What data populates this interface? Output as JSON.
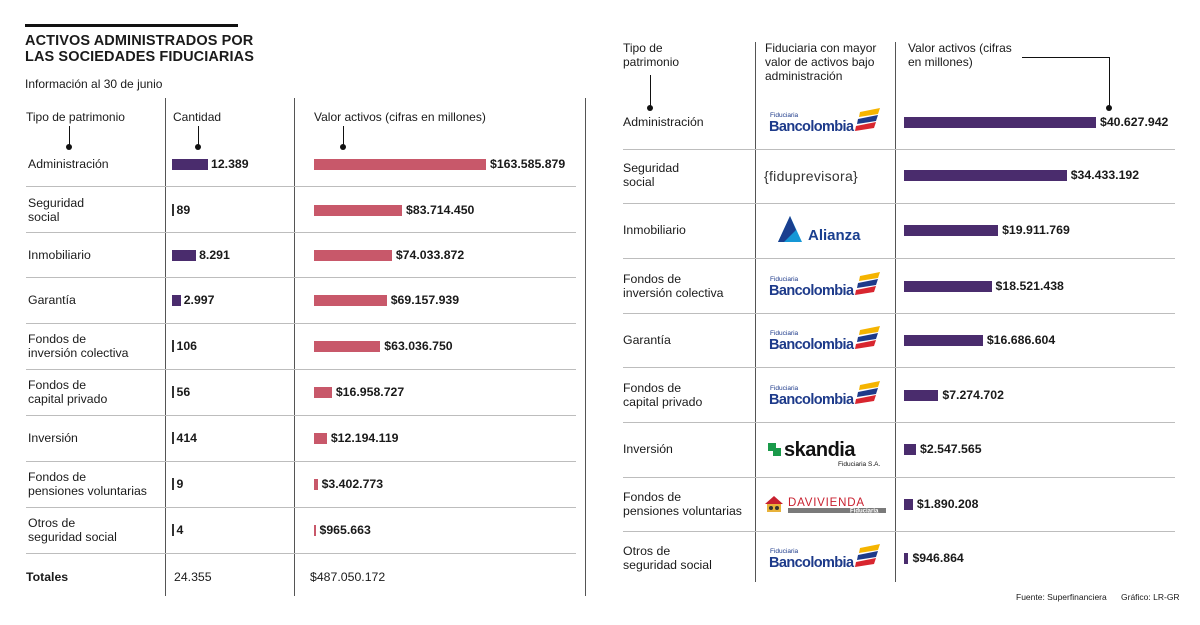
{
  "title": "ACTIVOS ADMINISTRADOS POR LAS SOCIEDADES FIDUCIARIAS",
  "subtitle": "Información al 30 de junio",
  "colors": {
    "purple": "#4a2c6d",
    "red": "#c8586a"
  },
  "left": {
    "headers": {
      "type": "Tipo de patrimonio",
      "count": "Cantidad",
      "value": "Valor activos (cifras en millones)"
    },
    "totals": {
      "label": "Totales",
      "count": "24.355",
      "value": "$487.050.172"
    }
  },
  "right": {
    "headers": {
      "type": "Tipo de patrimonio",
      "fiduciaria": "Fiduciaria con mayor valor de activos bajo administración",
      "value": "Valor activos (cifras en millones)"
    }
  },
  "logos": {
    "bancolombia_small": "Fiduciaria",
    "bancolombia": "Bancolombia",
    "fiduprevisora": "{fiduprevisora}",
    "alianza": "Alianza",
    "skandia": "skandia",
    "skandia_sub": "Fiduciaria S.A.",
    "davivienda": "DAVIVIENDA",
    "davivienda_sub": "Fiduciaria"
  },
  "chart_data": [
    {
      "type": "bar",
      "title": "ACTIVOS ADMINISTRADOS POR LAS SOCIEDADES FIDUCIARIAS",
      "subtitle": "Información al 30 de junio",
      "categories": [
        "Administración",
        "Seguridad social",
        "Inmobiliario",
        "Garantía",
        "Fondos de inversión colectiva",
        "Fondos de capital privado",
        "Inversión",
        "Fondos de pensiones voluntarias",
        "Otros de seguridad social"
      ],
      "series": [
        {
          "name": "Cantidad",
          "values": [
            12389,
            89,
            8291,
            2997,
            106,
            56,
            414,
            9,
            4
          ],
          "labels": [
            "12.389",
            "89",
            "8.291",
            "2.997",
            "106",
            "56",
            "414",
            "9",
            "4"
          ]
        },
        {
          "name": "Valor activos (cifras en millones)",
          "values": [
            163585879,
            83714450,
            74033872,
            69157939,
            63036750,
            16958727,
            12194119,
            3402773,
            965663
          ],
          "labels": [
            "$163.585.879",
            "$83.714.450",
            "$74.033.872",
            "$69.157.939",
            "$63.036.750",
            "$16.958.727",
            "$12.194.119",
            "$3.402.773",
            "$965.663"
          ]
        }
      ]
    },
    {
      "type": "bar",
      "title": "Fiduciaria con mayor valor de activos bajo administración",
      "categories": [
        "Administración",
        "Seguridad social",
        "Inmobiliario",
        "Fondos de inversión colectiva",
        "Garantía",
        "Fondos de capital privado",
        "Inversión",
        "Fondos de pensiones voluntarias",
        "Otros de seguridad social"
      ],
      "fiduciarias": [
        "Bancolombia",
        "Fiduprevisora",
        "Alianza",
        "Bancolombia",
        "Bancolombia",
        "Bancolombia",
        "Skandia",
        "Davivienda",
        "Bancolombia"
      ],
      "series": [
        {
          "name": "Valor activos (cifras en millones)",
          "values": [
            40627942,
            34433192,
            19911769,
            18521438,
            16686604,
            7274702,
            2547565,
            1890208,
            946864
          ],
          "labels": [
            "$40.627.942",
            "$34.433.192",
            "$19.911.769",
            "$18.521.438",
            "$16.686.604",
            "$7.274.702",
            "$2.547.565",
            "$1.890.208",
            "$946.864"
          ]
        }
      ]
    }
  ],
  "footer": {
    "source": "Fuente: Superfinanciera",
    "credit": "Gráfico: LR-GR"
  }
}
